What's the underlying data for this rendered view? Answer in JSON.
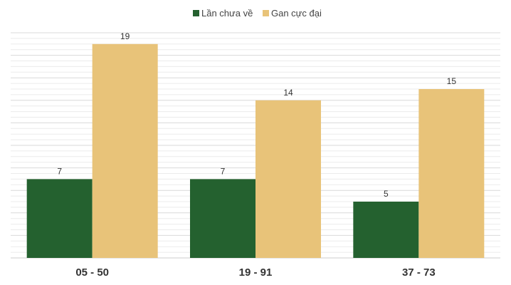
{
  "colors": {
    "series_1": "#24612F",
    "series_2": "#E8C379",
    "grid_minor": "#ebebeb",
    "grid_major": "#d9d9d9",
    "axis": "#cccccc"
  },
  "chart_data": {
    "type": "bar",
    "categories": [
      "05 - 50",
      "19 - 91",
      "37 - 73"
    ],
    "series": [
      {
        "name": "Lần chưa về",
        "values": [
          7,
          7,
          5
        ]
      },
      {
        "name": "Gan cực đại",
        "values": [
          19,
          14,
          15
        ]
      }
    ],
    "ylim": [
      0,
      20
    ],
    "grid": true,
    "legend": "top-center",
    "data_labels": true
  }
}
